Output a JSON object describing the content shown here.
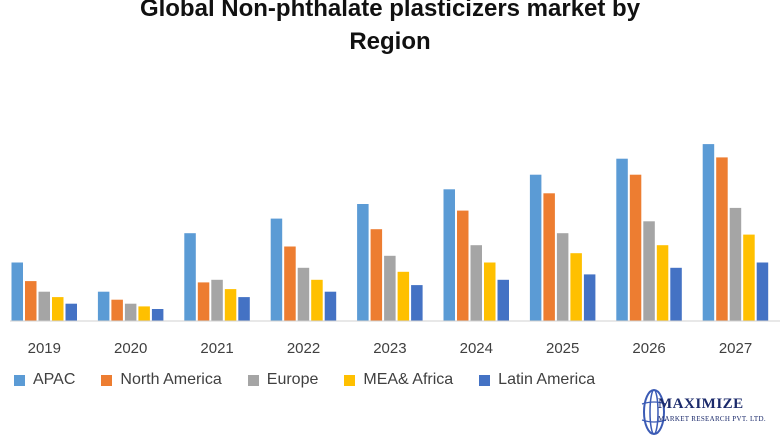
{
  "chart_data": {
    "type": "bar",
    "title": "Global Non-phthalate plasticizers market by Region",
    "title_lines": [
      "Global Non-phthalate plasticizers market by",
      "Region"
    ],
    "xlabel": "",
    "ylabel": "",
    "categories": [
      "2019",
      "2020",
      "2021",
      "2022",
      "2023",
      "2024",
      "2025",
      "2026",
      "2027"
    ],
    "ylim": [
      0,
      100
    ],
    "grid": false,
    "legend_position": "bottom",
    "series": [
      {
        "name": "APAC",
        "color": "#5b9bd5",
        "values": [
          22,
          11,
          33,
          38.5,
          44,
          49.5,
          55,
          61,
          66.5
        ]
      },
      {
        "name": "North America",
        "color": "#ed7d31",
        "values": [
          15,
          8,
          14.5,
          28,
          34.5,
          41.5,
          48,
          55,
          61.5
        ]
      },
      {
        "name": "Europe",
        "color": "#a5a5a5",
        "values": [
          11,
          6.5,
          15.5,
          20,
          24.5,
          28.5,
          33,
          37.5,
          42.5
        ]
      },
      {
        "name": "MEA& Africa",
        "color": "#ffc000",
        "values": [
          9,
          5.5,
          12,
          15.5,
          18.5,
          22,
          25.5,
          28.5,
          32.5
        ]
      },
      {
        "name": "Latin America",
        "color": "#4472c4",
        "values": [
          6.5,
          4.5,
          9,
          11,
          13.5,
          15.5,
          17.5,
          20,
          22
        ]
      }
    ]
  },
  "logo": {
    "name": "MAXIMIZE",
    "tagline": "MARKET RESEARCH PVT. LTD.",
    "colors": {
      "primary": "#1b2a6b",
      "globe": "#3b5bb5"
    }
  }
}
